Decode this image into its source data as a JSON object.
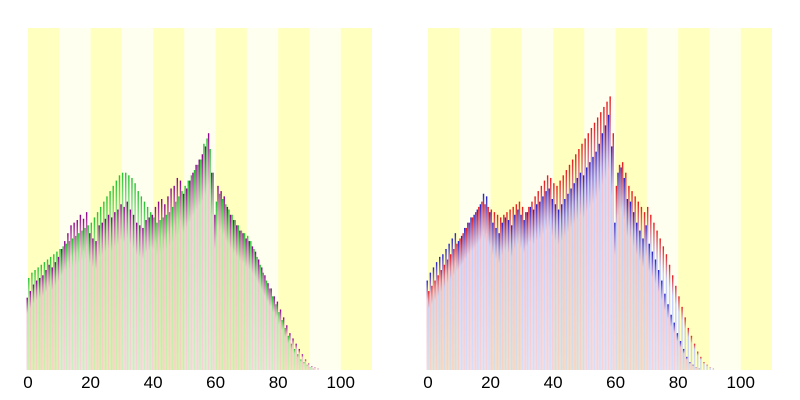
{
  "chart_data": [
    {
      "type": "bar",
      "title": "",
      "xlabel": "",
      "ylabel": "",
      "xlim": [
        0,
        110
      ],
      "ylim": [
        0,
        260
      ],
      "xticks": [
        "0",
        "20",
        "40",
        "60",
        "80",
        "100"
      ],
      "background_bands": {
        "width": 10,
        "colors": [
          "#ffffc0",
          "#fffff0"
        ]
      },
      "colors": {
        "front_tip": "#8b008b",
        "back_tip": "#22c22e",
        "fill_a": "#f2b6c8",
        "fill_b": "#a8e6a3"
      },
      "x": [
        0,
        1,
        2,
        3,
        4,
        5,
        6,
        7,
        8,
        9,
        10,
        11,
        12,
        13,
        14,
        15,
        16,
        17,
        18,
        19,
        20,
        21,
        22,
        23,
        24,
        25,
        26,
        27,
        28,
        29,
        30,
        31,
        32,
        33,
        34,
        35,
        36,
        37,
        38,
        39,
        40,
        41,
        42,
        43,
        44,
        45,
        46,
        47,
        48,
        49,
        50,
        51,
        52,
        53,
        54,
        55,
        56,
        57,
        58,
        59,
        60,
        61,
        62,
        63,
        64,
        65,
        66,
        67,
        68,
        69,
        70,
        71,
        72,
        73,
        74,
        75,
        76,
        77,
        78,
        79,
        80,
        81,
        82,
        83,
        84,
        85,
        86,
        87,
        88,
        89,
        90,
        91,
        92,
        93,
        94,
        95,
        96,
        97,
        98,
        99,
        100
      ],
      "series": [
        {
          "values": [
            55,
            60,
            65,
            68,
            70,
            72,
            76,
            80,
            78,
            82,
            86,
            92,
            98,
            104,
            110,
            112,
            114,
            118,
            115,
            120,
            104,
            100,
            98,
            110,
            112,
            115,
            118,
            116,
            120,
            122,
            126,
            124,
            128,
            122,
            118,
            112,
            110,
            108,
            114,
            116,
            118,
            124,
            128,
            130,
            126,
            132,
            138,
            140,
            146,
            144,
            134,
            138,
            144,
            150,
            156,
            160,
            164,
            170,
            180,
            150,
            118,
            140,
            136,
            132,
            124,
            118,
            114,
            110,
            106,
            104,
            100,
            98,
            94,
            90,
            84,
            78,
            72,
            66,
            62,
            56,
            52,
            46,
            40,
            34,
            28,
            24,
            20,
            16,
            12,
            8,
            5,
            3,
            2,
            1,
            0,
            0,
            0,
            0,
            0,
            0,
            0
          ]
        },
        {
          "values": [
            70,
            74,
            76,
            78,
            80,
            82,
            84,
            86,
            88,
            90,
            92,
            94,
            96,
            98,
            100,
            102,
            104,
            106,
            108,
            110,
            112,
            116,
            120,
            124,
            128,
            132,
            136,
            140,
            144,
            148,
            150,
            150,
            148,
            146,
            142,
            136,
            132,
            128,
            124,
            120,
            116,
            112,
            114,
            116,
            118,
            120,
            124,
            128,
            132,
            136,
            140,
            144,
            148,
            152,
            156,
            160,
            172,
            176,
            168,
            150,
            128,
            134,
            130,
            126,
            122,
            118,
            114,
            110,
            106,
            104,
            102,
            98,
            92,
            86,
            80,
            74,
            68,
            62,
            56,
            50,
            44,
            38,
            32,
            26,
            20,
            16,
            12,
            8,
            6,
            4,
            2,
            1,
            0,
            0,
            0,
            0,
            0,
            0,
            0,
            0,
            0
          ]
        }
      ]
    },
    {
      "type": "bar",
      "title": "",
      "xlabel": "",
      "ylabel": "",
      "xlim": [
        0,
        110
      ],
      "ylim": [
        0,
        260
      ],
      "xticks": [
        "0",
        "20",
        "40",
        "60",
        "80",
        "100"
      ],
      "background_bands": {
        "width": 10,
        "colors": [
          "#ffffc0",
          "#fffff0"
        ]
      },
      "colors": {
        "front_tip": "#2020c8",
        "back_tip": "#e81818",
        "fill_a": "#f2b6c8",
        "fill_b": "#bcc8ff"
      },
      "x": [
        0,
        1,
        2,
        3,
        4,
        5,
        6,
        7,
        8,
        9,
        10,
        11,
        12,
        13,
        14,
        15,
        16,
        17,
        18,
        19,
        20,
        21,
        22,
        23,
        24,
        25,
        26,
        27,
        28,
        29,
        30,
        31,
        32,
        33,
        34,
        35,
        36,
        37,
        38,
        39,
        40,
        41,
        42,
        43,
        44,
        45,
        46,
        47,
        48,
        49,
        50,
        51,
        52,
        53,
        54,
        55,
        56,
        57,
        58,
        59,
        60,
        61,
        62,
        63,
        64,
        65,
        66,
        67,
        68,
        69,
        70,
        71,
        72,
        73,
        74,
        75,
        76,
        77,
        78,
        79,
        80,
        81,
        82,
        83,
        84,
        85,
        86,
        87,
        88,
        89,
        90,
        91,
        92,
        93,
        94,
        95,
        96,
        97,
        98,
        99,
        100
      ],
      "series": [
        {
          "values": [
            68,
            74,
            78,
            82,
            86,
            88,
            92,
            96,
            100,
            104,
            98,
            102,
            108,
            112,
            116,
            118,
            122,
            126,
            134,
            132,
            120,
            112,
            108,
            104,
            112,
            116,
            114,
            110,
            118,
            122,
            118,
            114,
            120,
            124,
            122,
            126,
            128,
            132,
            136,
            138,
            130,
            126,
            122,
            126,
            130,
            134,
            138,
            142,
            146,
            150,
            148,
            154,
            158,
            162,
            166,
            172,
            180,
            186,
            194,
            170,
            112,
            150,
            154,
            146,
            130,
            128,
            120,
            112,
            106,
            100,
            110,
            96,
            90,
            84,
            76,
            68,
            58,
            50,
            42,
            36,
            28,
            22,
            16,
            10,
            6,
            4,
            2,
            1,
            0,
            0,
            0,
            0,
            0,
            0,
            0,
            0,
            0,
            0,
            0,
            0,
            0
          ]
        },
        {
          "values": [
            60,
            64,
            68,
            72,
            76,
            80,
            84,
            88,
            92,
            96,
            100,
            104,
            108,
            112,
            116,
            120,
            124,
            128,
            126,
            124,
            122,
            120,
            118,
            116,
            118,
            120,
            122,
            124,
            126,
            128,
            124,
            120,
            124,
            128,
            132,
            136,
            140,
            144,
            148,
            146,
            142,
            140,
            144,
            148,
            152,
            156,
            160,
            164,
            168,
            172,
            176,
            180,
            184,
            188,
            192,
            196,
            200,
            204,
            208,
            180,
            140,
            156,
            158,
            150,
            140,
            136,
            132,
            128,
            124,
            120,
            124,
            118,
            112,
            106,
            100,
            94,
            88,
            80,
            72,
            64,
            56,
            48,
            40,
            32,
            26,
            20,
            14,
            10,
            6,
            4,
            2,
            1,
            0,
            0,
            0,
            0,
            0,
            0,
            0,
            0,
            0
          ]
        }
      ]
    }
  ]
}
